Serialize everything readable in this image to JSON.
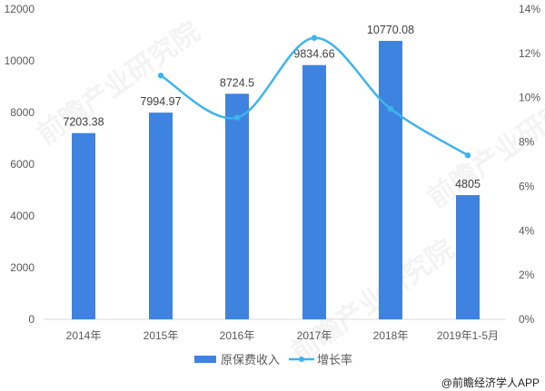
{
  "chart_data": {
    "type": "bar",
    "title": "",
    "categories": [
      "2014年",
      "2015年",
      "2016年",
      "2017年",
      "2018年",
      "2019年1-5月"
    ],
    "series": [
      {
        "name": "原保费收入",
        "type": "bar",
        "axis": "left",
        "color": "#3f83e0",
        "values": [
          7203.38,
          7994.97,
          8724.5,
          9834.66,
          10770.08,
          4805
        ],
        "labels": [
          "7203.38",
          "7994.97",
          "8724.5",
          "9834.66",
          "10770.08",
          "4805"
        ]
      },
      {
        "name": "增长率",
        "type": "line",
        "axis": "right",
        "color": "#3db4ec",
        "values": [
          null,
          11.0,
          9.1,
          12.7,
          9.5,
          7.4
        ],
        "unit": "%"
      }
    ],
    "left_axis": {
      "ylim": [
        0,
        12000
      ],
      "ticks": [
        "0",
        "2000",
        "4000",
        "6000",
        "8000",
        "10000",
        "12000"
      ]
    },
    "right_axis": {
      "ylim": [
        0,
        14
      ],
      "ticks": [
        "0%",
        "2%",
        "4%",
        "6%",
        "8%",
        "10%",
        "12%",
        "14%"
      ]
    },
    "xlabel": "",
    "ylabel": "",
    "grid": false,
    "legend_position": "bottom"
  },
  "legend": {
    "bar_label": "原保费收入",
    "line_label": "增长率"
  },
  "credit": "@前瞻经济学人APP",
  "watermark": "前瞻产业研究院"
}
